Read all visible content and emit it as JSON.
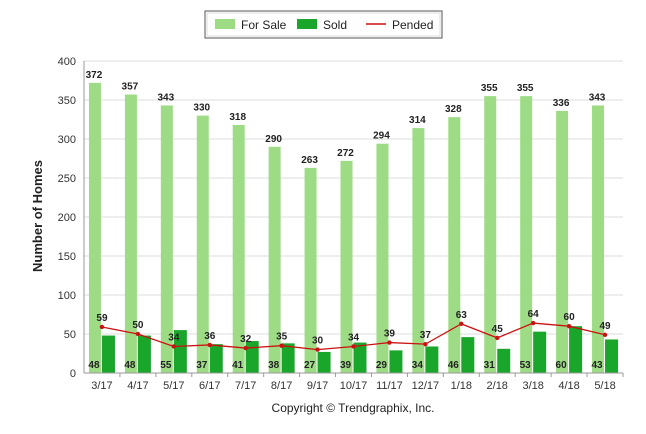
{
  "chart_data": {
    "type": "bar",
    "categories": [
      "3/17",
      "4/17",
      "5/17",
      "6/17",
      "7/17",
      "8/17",
      "9/17",
      "10/17",
      "11/17",
      "12/17",
      "1/18",
      "2/18",
      "3/18",
      "4/18",
      "5/18"
    ],
    "series": [
      {
        "name": "For Sale",
        "type": "bar",
        "color": "#9ddc85",
        "values": [
          372,
          357,
          343,
          330,
          318,
          290,
          263,
          272,
          294,
          314,
          328,
          355,
          355,
          336,
          343
        ]
      },
      {
        "name": "Sold",
        "type": "bar",
        "color": "#1aa52b",
        "values": [
          48,
          48,
          55,
          37,
          41,
          38,
          27,
          39,
          29,
          34,
          46,
          31,
          53,
          60,
          43
        ]
      },
      {
        "name": "Pended",
        "type": "line",
        "color": "#cc1111",
        "values": [
          59,
          50,
          34,
          36,
          32,
          35,
          30,
          34,
          39,
          37,
          63,
          45,
          64,
          60,
          49
        ]
      }
    ],
    "ylabel": "Number of Homes",
    "xlabel": "",
    "ylim": [
      0,
      400
    ],
    "yticks": [
      0,
      50,
      100,
      150,
      200,
      250,
      300,
      350,
      400
    ],
    "grid": true,
    "legend_position": "top-center",
    "credit": "Copyright © Trendgraphix, Inc."
  }
}
